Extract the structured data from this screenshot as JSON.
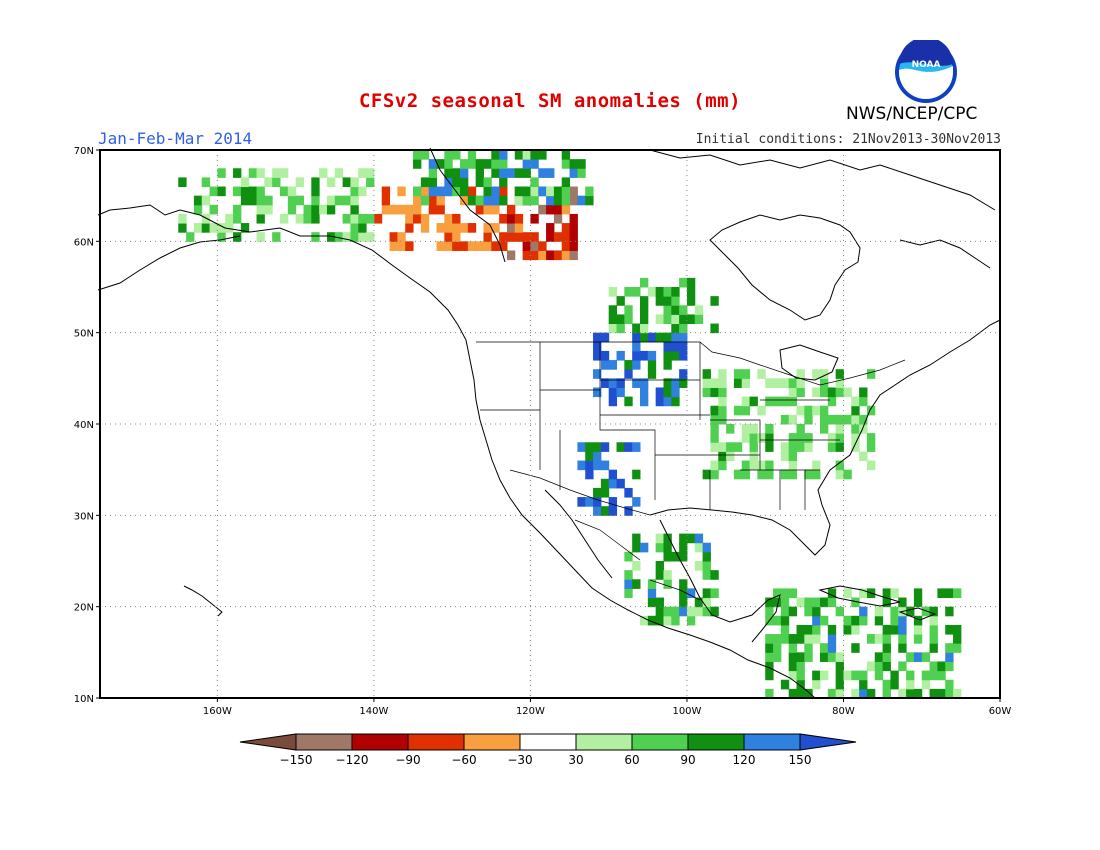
{
  "title": "CFSv2 seasonal SM anomalies (mm)",
  "period": "Jan-Feb-Mar 2014",
  "initial_conditions": "Initial conditions: 21Nov2013-30Nov2013",
  "agency": "NWS/NCEP/CPC",
  "logo_text": "NOAA",
  "map": {
    "lon_min": -175,
    "lon_max": -60,
    "lat_min": 10,
    "lat_max": 70,
    "lat_labels": [
      {
        "lat": 70,
        "label": "70N"
      },
      {
        "lat": 60,
        "label": "60N"
      },
      {
        "lat": 50,
        "label": "50N"
      },
      {
        "lat": 40,
        "label": "40N"
      },
      {
        "lat": 30,
        "label": "30N"
      },
      {
        "lat": 20,
        "label": "20N"
      },
      {
        "lat": 10,
        "label": "10N"
      }
    ],
    "lon_labels": [
      {
        "lon": -160,
        "label": "160W"
      },
      {
        "lon": -140,
        "label": "140W"
      },
      {
        "lon": -120,
        "label": "120W"
      },
      {
        "lon": -100,
        "label": "100W"
      },
      {
        "lon": -80,
        "label": "80W"
      },
      {
        "lon": -60,
        "label": "60W"
      }
    ]
  },
  "legend": {
    "colors": [
      "#7a4a3a",
      "#a07868",
      "#b00000",
      "#e03000",
      "#f8a040",
      "#ffffff",
      "#b0f0a0",
      "#50d050",
      "#109010",
      "#3080e0",
      "#2050d0"
    ],
    "tick_labels": [
      "-150",
      "-120",
      "-90",
      "-60",
      "-30",
      "30",
      "60",
      "90",
      "120",
      "150"
    ]
  },
  "anomaly_regions": [
    {
      "name": "northern-plains-wet",
      "lon": [
        -112,
        -100
      ],
      "lat": [
        42,
        50
      ],
      "value": 140
    },
    {
      "name": "southwest-wet",
      "lon": [
        -114,
        -106
      ],
      "lat": [
        30,
        38
      ],
      "value": 130
    },
    {
      "name": "eastern-us-moist",
      "lon": [
        -98,
        -76
      ],
      "lat": [
        34,
        46
      ],
      "value": 55
    },
    {
      "name": "canadian-prairie-moist",
      "lon": [
        -110,
        -96
      ],
      "lat": [
        50,
        56
      ],
      "value": 80
    },
    {
      "name": "mexico-moist",
      "lon": [
        -108,
        -96
      ],
      "lat": [
        18,
        28
      ],
      "value": 90
    },
    {
      "name": "western-canada-dry",
      "lon": [
        -124,
        -114
      ],
      "lat": [
        58,
        66
      ],
      "value": -90
    },
    {
      "name": "yukon-mixed",
      "lon": [
        -140,
        -124
      ],
      "lat": [
        59,
        66
      ],
      "value": -45
    },
    {
      "name": "alaska-moist",
      "lon": [
        -165,
        -140
      ],
      "lat": [
        60,
        68
      ],
      "value": 65
    },
    {
      "name": "arctic-mixed",
      "lon": [
        -135,
        -112
      ],
      "lat": [
        64,
        70
      ],
      "value": 95
    },
    {
      "name": "caribbean-moist",
      "lon": [
        -90,
        -65
      ],
      "lat": [
        10,
        22
      ],
      "value": 85
    }
  ]
}
